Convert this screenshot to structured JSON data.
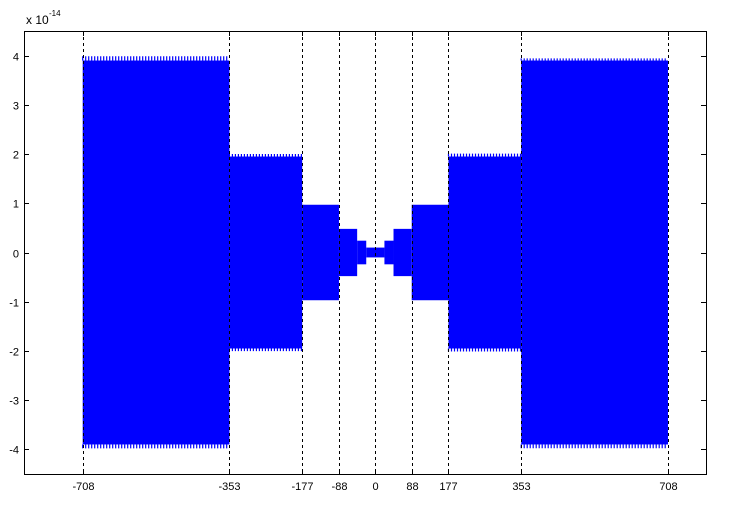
{
  "chart_data": {
    "type": "area",
    "title": "",
    "xlabel": "",
    "ylabel": "",
    "y_scale_multiplier": "x 10",
    "y_scale_exponent": "-14",
    "xlim": [
      -850,
      800
    ],
    "ylim": [
      -4.5,
      4.5
    ],
    "x_ticks": [
      -708,
      -353,
      -177,
      -88,
      0,
      88,
      177,
      353,
      708
    ],
    "x_tick_labels": [
      "-708",
      "-353",
      "-177",
      "-88",
      "0",
      "88",
      "177",
      "353",
      "708"
    ],
    "y_ticks": [
      -4,
      -3,
      -2,
      -1,
      0,
      1,
      2,
      3,
      4
    ],
    "y_tick_labels": [
      "-4",
      "-3",
      "-2",
      "-1",
      "0",
      "1",
      "2",
      "3",
      "4"
    ],
    "vertical_gridlines_at": [
      -708,
      -353,
      -177,
      -88,
      0,
      88,
      177,
      353,
      708
    ],
    "grid": "vertical dashed at x ticks",
    "series_color": "#0000ff",
    "series": [
      {
        "segments": [
          {
            "x": [
              -708,
              -353
            ],
            "amplitude": 3.9
          },
          {
            "x": [
              -353,
              -177
            ],
            "amplitude": 1.95
          },
          {
            "x": [
              -177,
              -88
            ],
            "amplitude": 0.97
          },
          {
            "x": [
              -88,
              -44
            ],
            "amplitude": 0.48
          },
          {
            "x": [
              -44,
              -22
            ],
            "amplitude": 0.24
          },
          {
            "x": [
              -22,
              22
            ],
            "amplitude": 0.1
          },
          {
            "x": [
              22,
              44
            ],
            "amplitude": 0.24
          },
          {
            "x": [
              44,
              88
            ],
            "amplitude": 0.48
          },
          {
            "x": [
              88,
              177
            ],
            "amplitude": 0.97
          },
          {
            "x": [
              177,
              353
            ],
            "amplitude": 1.95
          },
          {
            "x": [
              353,
              708
            ],
            "amplitude": 3.9
          }
        ]
      }
    ]
  }
}
